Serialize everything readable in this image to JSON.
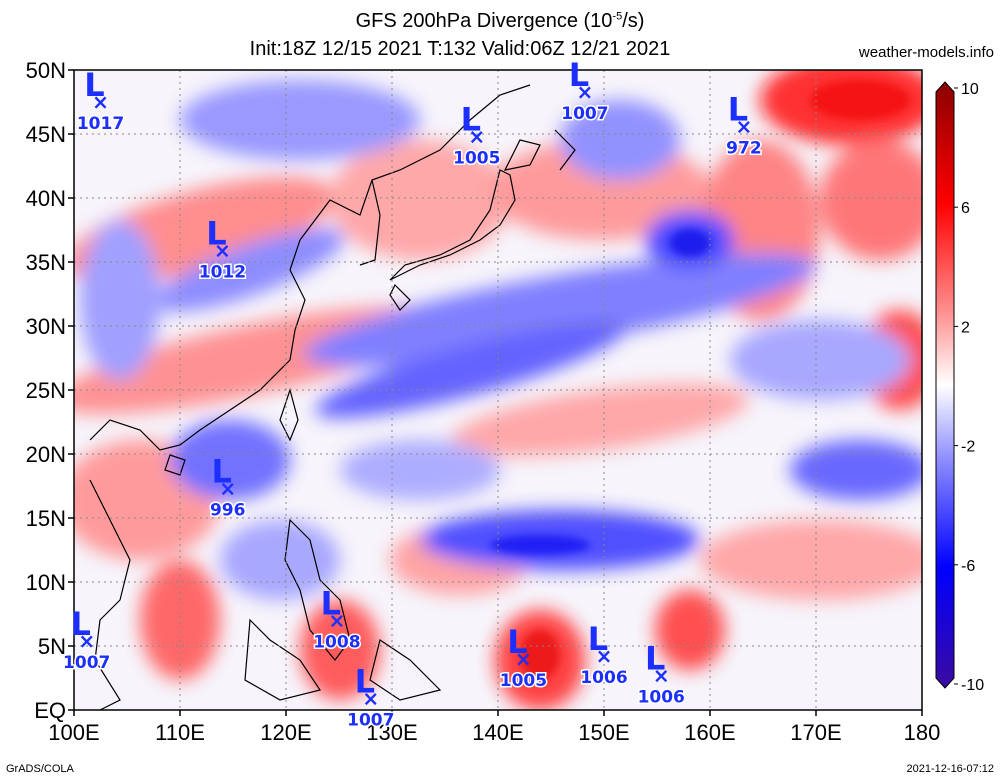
{
  "title_line1": "GFS 200hPa Divergence (10",
  "title_exp": "-5",
  "title_unit": "/s)",
  "title_line2": "Init:18Z 12/15 2021 T:132 Valid:06Z 12/21 2021",
  "credit": "weather-models.info",
  "footer_left": "GrADS/COLA",
  "footer_right": "2021-12-16-07:12",
  "map": {
    "lon_range": [
      100,
      180
    ],
    "lat_range": [
      0,
      50
    ],
    "lon_ticks": [
      {
        "value": 100,
        "label": "100E"
      },
      {
        "value": 110,
        "label": "110E"
      },
      {
        "value": 120,
        "label": "120E"
      },
      {
        "value": 130,
        "label": "130E"
      },
      {
        "value": 140,
        "label": "140E"
      },
      {
        "value": 150,
        "label": "150E"
      },
      {
        "value": 160,
        "label": "160E"
      },
      {
        "value": 170,
        "label": "170E"
      },
      {
        "value": 180,
        "label": "180"
      }
    ],
    "lat_ticks": [
      {
        "value": 0,
        "label": "EQ"
      },
      {
        "value": 5,
        "label": "5N"
      },
      {
        "value": 10,
        "label": "10N"
      },
      {
        "value": 15,
        "label": "15N"
      },
      {
        "value": 20,
        "label": "20N"
      },
      {
        "value": 25,
        "label": "25N"
      },
      {
        "value": 30,
        "label": "30N"
      },
      {
        "value": 35,
        "label": "35N"
      },
      {
        "value": 40,
        "label": "40N"
      },
      {
        "value": 45,
        "label": "45N"
      },
      {
        "value": 50,
        "label": "50N"
      }
    ],
    "lows": [
      {
        "label": "L",
        "pressure": "1017",
        "lon": 102.5,
        "lat": 47.5
      },
      {
        "label": "L",
        "pressure": "1005",
        "lon": 138.0,
        "lat": 44.8
      },
      {
        "label": "L",
        "pressure": "1007",
        "lon": 148.2,
        "lat": 48.3
      },
      {
        "label": "L",
        "pressure": "972",
        "lon": 163.2,
        "lat": 45.6
      },
      {
        "label": "L",
        "pressure": "1012",
        "lon": 114.0,
        "lat": 35.9
      },
      {
        "label": "L",
        "pressure": "996",
        "lon": 114.5,
        "lat": 17.3
      },
      {
        "label": "L",
        "pressure": "1008",
        "lon": 124.8,
        "lat": 7.0
      },
      {
        "label": "L",
        "pressure": "1007",
        "lon": 101.2,
        "lat": 5.4
      },
      {
        "label": "L",
        "pressure": "1007",
        "lon": 128.0,
        "lat": 0.9
      },
      {
        "label": "L",
        "pressure": "1005",
        "lon": 142.4,
        "lat": 4.0
      },
      {
        "label": "L",
        "pressure": "1006",
        "lon": 150.0,
        "lat": 4.2
      },
      {
        "label": "L",
        "pressure": "1006",
        "lon": 155.4,
        "lat": 2.7
      }
    ]
  },
  "colorbar": {
    "unit": "10^-5/s",
    "range": [
      -10,
      10
    ],
    "labels": [
      "10",
      "6",
      "2",
      "-2",
      "-6",
      "-10"
    ],
    "colors": [
      "#3b0aa0",
      "#0000ff",
      "#8c8cff",
      "#ffffff",
      "#ff8c8c",
      "#ff0000",
      "#8b0000"
    ]
  }
}
